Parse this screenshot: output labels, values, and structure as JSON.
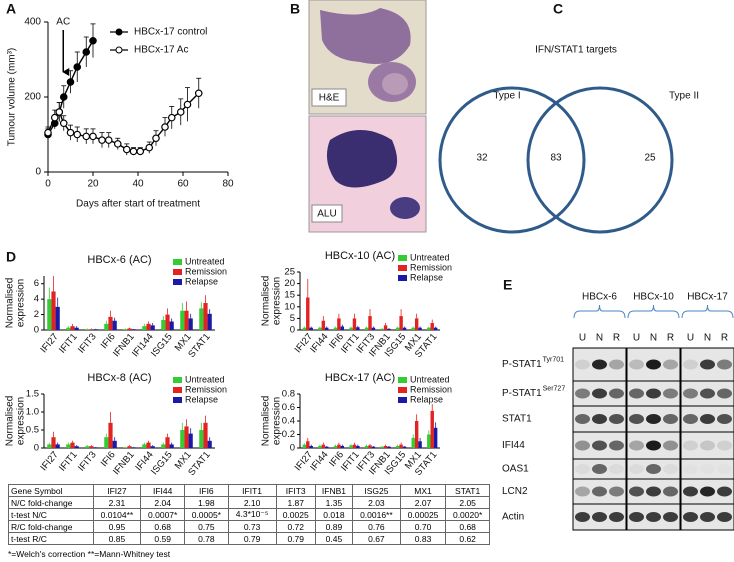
{
  "panel_labels": [
    "A",
    "B",
    "C",
    "D",
    "E"
  ],
  "chart_data": [
    {
      "type": "line",
      "y_label": "Tumour volume (mm³)",
      "x_label": "Days after start of treatment",
      "xlim": [
        0,
        80
      ],
      "xticks": [
        0,
        20,
        40,
        60,
        80
      ],
      "ylim": [
        0,
        400
      ],
      "yticks": [
        0,
        200,
        400
      ],
      "legend": "upper right",
      "annotation": {
        "text": "AC",
        "x": 5
      },
      "series": [
        {
          "name": "HBCx-17 control",
          "color": "#000000",
          "marker": "filled",
          "x": [
            0,
            3,
            5,
            7,
            10,
            13,
            17,
            20
          ],
          "values": [
            100,
            130,
            160,
            200,
            240,
            280,
            320,
            350
          ],
          "errors": [
            15,
            15,
            25,
            30,
            30,
            40,
            40,
            45
          ]
        },
        {
          "name": "HBCx-17 Ac",
          "color": "#000000",
          "marker": "open",
          "x": [
            0,
            3,
            5,
            7,
            10,
            13,
            17,
            20,
            24,
            27,
            31,
            35,
            38,
            41,
            45,
            48,
            52,
            55,
            59,
            62,
            67
          ],
          "values": [
            105,
            145,
            160,
            130,
            105,
            100,
            95,
            95,
            85,
            85,
            75,
            60,
            55,
            55,
            65,
            90,
            120,
            145,
            160,
            180,
            210
          ],
          "errors": [
            15,
            20,
            25,
            20,
            20,
            20,
            20,
            20,
            20,
            20,
            15,
            15,
            10,
            10,
            15,
            20,
            25,
            30,
            35,
            45,
            40
          ]
        }
      ]
    },
    {
      "type": "bar",
      "title": "HBCx-6 (AC)",
      "y_label": [
        "Normalised",
        "expression"
      ],
      "ylim": [
        0,
        7
      ],
      "yticks": [
        0,
        2,
        4,
        6
      ],
      "legend": "upper right",
      "categories": [
        "IFI27",
        "IFIT1",
        "IFIT3",
        "IFI6",
        "IFNB1",
        "IFI144",
        "ISG15",
        "MX1",
        "STAT1"
      ],
      "series": [
        {
          "name": "Untreated",
          "color": "#33cc33",
          "values": [
            4,
            0.3,
            0.1,
            0.8,
            0.1,
            0.5,
            1.3,
            2.5,
            2.8
          ],
          "errors": [
            1.5,
            0.2,
            0.1,
            0.4,
            0.1,
            0.3,
            0.5,
            1.0,
            0.8
          ]
        },
        {
          "name": "Remission",
          "color": "#e32222",
          "values": [
            5,
            0.5,
            0.1,
            1.7,
            0.2,
            0.8,
            2,
            2.5,
            3.5
          ],
          "errors": [
            2.0,
            0.3,
            0.1,
            0.8,
            0.1,
            0.3,
            0.8,
            1.2,
            1.0
          ]
        },
        {
          "name": "Relapse",
          "color": "#1a1aa6",
          "values": [
            3,
            0.3,
            0.1,
            1.2,
            0.1,
            0.6,
            1.1,
            1.5,
            2.1
          ],
          "errors": [
            1.2,
            0.2,
            0.05,
            0.4,
            0.05,
            0.3,
            0.4,
            0.6,
            0.6
          ]
        }
      ]
    },
    {
      "type": "bar",
      "title": "HBCx-10 (AC)",
      "y_label": [
        "Normalised",
        "expression"
      ],
      "ylim": [
        0,
        25
      ],
      "yticks": [
        0,
        5,
        10,
        15,
        20,
        25
      ],
      "legend": "upper right",
      "categories": [
        "IFI27",
        "IFI44",
        "IFI6",
        "IFIT1",
        "IFIT3",
        "IFNB1",
        "ISG15",
        "MX1",
        "STAT1"
      ],
      "series": [
        {
          "name": "Untreated",
          "color": "#33cc33",
          "values": [
            1,
            1,
            1,
            1,
            1,
            0.5,
            1,
            1,
            1
          ],
          "errors": [
            0.5,
            0.5,
            0.5,
            0.5,
            0.5,
            0.3,
            0.5,
            0.5,
            0.5
          ]
        },
        {
          "name": "Remission",
          "color": "#e32222",
          "values": [
            14,
            4,
            5,
            5,
            6,
            2,
            6,
            5,
            3
          ],
          "errors": [
            8,
            2,
            2,
            2,
            3,
            1,
            3,
            2,
            1.5
          ]
        },
        {
          "name": "Relapse",
          "color": "#1a1aa6",
          "values": [
            1,
            1,
            1.5,
            1.2,
            1,
            0.5,
            1,
            1,
            1
          ],
          "errors": [
            0.5,
            0.5,
            0.8,
            0.6,
            0.5,
            0.3,
            0.5,
            0.5,
            0.5
          ]
        }
      ]
    },
    {
      "type": "bar",
      "title": "HBCx-8 (AC)",
      "y_label": [
        "Normalised",
        "expression"
      ],
      "ylim": [
        0,
        1.5
      ],
      "yticks": [
        0,
        0.5,
        {
          "value": 1,
          "label": "1.0"
        },
        1.5
      ],
      "legend": "upper right",
      "categories": [
        "IFI27",
        "IFIT1",
        "IFIT3",
        "IFI6",
        "IFNB1",
        "IFI44",
        "ISG15",
        "MX1",
        "STAT1"
      ],
      "series": [
        {
          "name": "Untreated",
          "color": "#33cc33",
          "values": [
            0.1,
            0.1,
            0.05,
            0.3,
            0.02,
            0.1,
            0.1,
            0.5,
            0.5
          ],
          "errors": [
            0.05,
            0.05,
            0.03,
            0.1,
            0.01,
            0.05,
            0.05,
            0.2,
            0.2
          ]
        },
        {
          "name": "Remission",
          "color": "#e32222",
          "values": [
            0.3,
            0.15,
            0.05,
            0.7,
            0.05,
            0.15,
            0.3,
            0.6,
            0.7
          ],
          "errors": [
            0.15,
            0.05,
            0.03,
            0.3,
            0.03,
            0.05,
            0.1,
            0.2,
            0.2
          ]
        },
        {
          "name": "Relapse",
          "color": "#1a1aa6",
          "values": [
            0.1,
            0.05,
            0.02,
            0.2,
            0.02,
            0.05,
            0.1,
            0.4,
            0.2
          ],
          "errors": [
            0.05,
            0.03,
            0.01,
            0.1,
            0.01,
            0.03,
            0.05,
            0.15,
            0.1
          ]
        }
      ]
    },
    {
      "type": "bar",
      "title": "HBCx-17 (AC)",
      "y_label": [
        "Normalised",
        "expression"
      ],
      "ylim": [
        0,
        0.8
      ],
      "yticks": [
        0,
        0.2,
        0.4,
        0.6,
        0.8
      ],
      "legend": "upper right",
      "categories": [
        "IFI27",
        "IFI44",
        "IFI6",
        "IFIT1",
        "IFIT3",
        "IFNB1",
        "ISG15",
        "MX1",
        "STAT1"
      ],
      "series": [
        {
          "name": "Untreated",
          "color": "#33cc33",
          "values": [
            0.05,
            0.03,
            0.03,
            0.04,
            0.03,
            0.02,
            0.03,
            0.15,
            0.2
          ],
          "errors": [
            0.02,
            0.02,
            0.02,
            0.02,
            0.02,
            0.01,
            0.02,
            0.05,
            0.06
          ]
        },
        {
          "name": "Remission",
          "color": "#e32222",
          "values": [
            0.1,
            0.05,
            0.05,
            0.05,
            0.04,
            0.03,
            0.05,
            0.4,
            0.55
          ],
          "errors": [
            0.05,
            0.03,
            0.03,
            0.03,
            0.02,
            0.02,
            0.03,
            0.1,
            0.1
          ]
        },
        {
          "name": "Relapse",
          "color": "#1a1aa6",
          "values": [
            0.03,
            0.02,
            0.03,
            0.03,
            0.02,
            0.02,
            0.02,
            0.1,
            0.3
          ],
          "errors": [
            0.02,
            0.01,
            0.02,
            0.02,
            0.01,
            0.01,
            0.01,
            0.05,
            0.08
          ]
        }
      ]
    }
  ],
  "images": {
    "labels": [
      "H&E",
      "ALU"
    ]
  },
  "venn": {
    "title": "IFN/STAT1 targets",
    "sets": [
      "Type I",
      "Type II"
    ],
    "counts": [
      "32",
      "83",
      "25"
    ]
  },
  "table": {
    "header": [
      "Gene Symbol",
      "IFI27",
      "IFI44",
      "IFI6",
      "IFIT1",
      "IFIT3",
      "IFNB1",
      "ISG25",
      "MX1",
      "STAT1"
    ],
    "rows": [
      [
        "N/C fold-change",
        "2.31",
        "2.04",
        "1.98",
        "2.10",
        "1.87",
        "1.35",
        "2.03",
        "2.07",
        "2.05"
      ],
      [
        "t-test N/C",
        "0.0104**",
        "0.0007*",
        "0.0005*",
        "4.3*10⁻⁵",
        "0.0025",
        "0.018",
        "0.0016**",
        "0.00025",
        "0.0020*"
      ],
      [
        "R/C fold-change",
        "0.95",
        "0.68",
        "0.75",
        "0.73",
        "0.72",
        "0.89",
        "0.76",
        "0.70",
        "0.68"
      ],
      [
        "t-test R/C",
        "0.85",
        "0.59",
        "0.78",
        "0.79",
        "0.79",
        "0.45",
        "0.67",
        "0.83",
        "0.62"
      ]
    ],
    "footnote": "*=Welch's correction **=Mann-Whitney test"
  },
  "blot": {
    "groups": [
      "HBCx-6",
      "HBCx-10",
      "HBCx-17"
    ],
    "lanes": [
      "U",
      "N",
      "R"
    ],
    "rows": [
      {
        "name": "P-STAT1",
        "sup": "Tyr701"
      },
      {
        "name": "P-STAT1",
        "sup": "Ser727"
      },
      {
        "name": "STAT1"
      },
      {
        "name": "IFI44"
      },
      {
        "name": "OAS1"
      },
      {
        "name": "LCN2"
      },
      {
        "name": "Actin"
      }
    ]
  }
}
